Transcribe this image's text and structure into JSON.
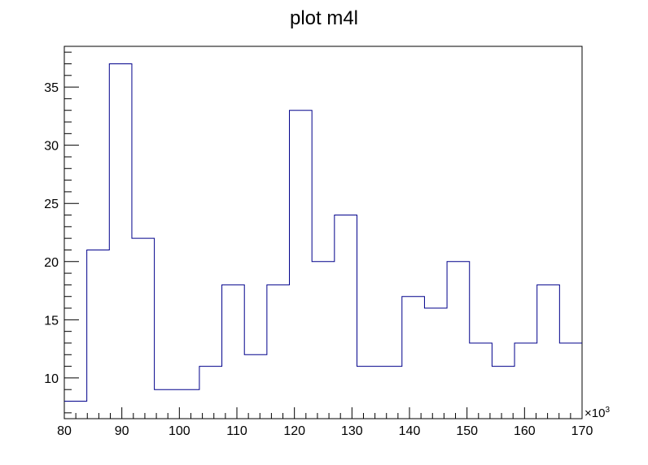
{
  "chart_data": {
    "type": "histogram",
    "title": "plot m4l",
    "xlabel": "",
    "ylabel": "",
    "x_multiplier_label": "×10",
    "x_multiplier_exponent": "3",
    "xlim": [
      80,
      170
    ],
    "ylim": [
      6.5,
      38.5
    ],
    "bin_edges": [
      80,
      83.913,
      87.826,
      91.739,
      95.652,
      99.565,
      103.478,
      107.391,
      111.304,
      115.217,
      119.13,
      123.043,
      126.957,
      130.87,
      134.783,
      138.696,
      142.609,
      146.522,
      150.435,
      154.348,
      158.261,
      162.174,
      166.087,
      170
    ],
    "values": [
      8,
      21,
      37,
      22,
      9,
      9,
      11,
      18,
      12,
      18,
      33,
      20,
      24,
      11,
      11,
      17,
      16,
      20,
      13,
      11,
      13,
      18,
      13
    ],
    "x_ticks": [
      80,
      90,
      100,
      110,
      120,
      130,
      140,
      150,
      160,
      170
    ],
    "y_ticks": [
      10,
      15,
      20,
      25,
      30,
      35
    ],
    "line_color": "#00008b",
    "grid": false,
    "legend": "none"
  }
}
